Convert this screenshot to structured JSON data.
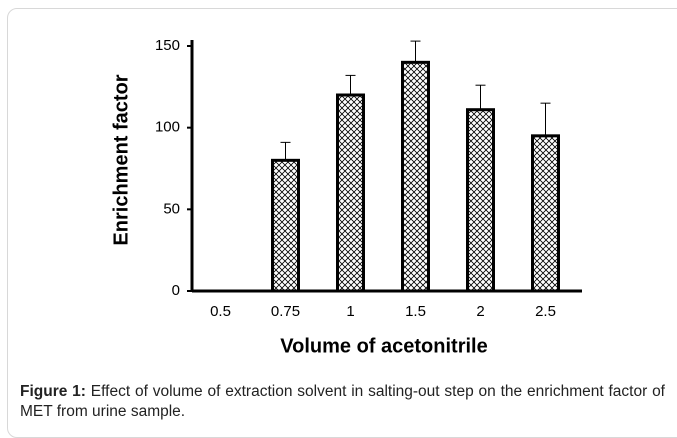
{
  "chart_data": {
    "type": "bar",
    "xlabel": "Volume of acetonitrile",
    "ylabel": "Enrichment factor",
    "categories": [
      "0.5",
      "0.75",
      "1",
      "1.5",
      "2",
      "2.5"
    ],
    "values": [
      0,
      80,
      120,
      140,
      111,
      95
    ],
    "errors": [
      0,
      11,
      12,
      13,
      15,
      20
    ],
    "ylim": [
      0,
      150
    ],
    "yticks": [
      0,
      50,
      100,
      150
    ],
    "grid": false,
    "color": "#000000"
  },
  "caption": {
    "label": "Figure 1:",
    "text": "Effect of volume of extraction solvent in salting-out step on the enrichment factor of MET from urine sample."
  }
}
